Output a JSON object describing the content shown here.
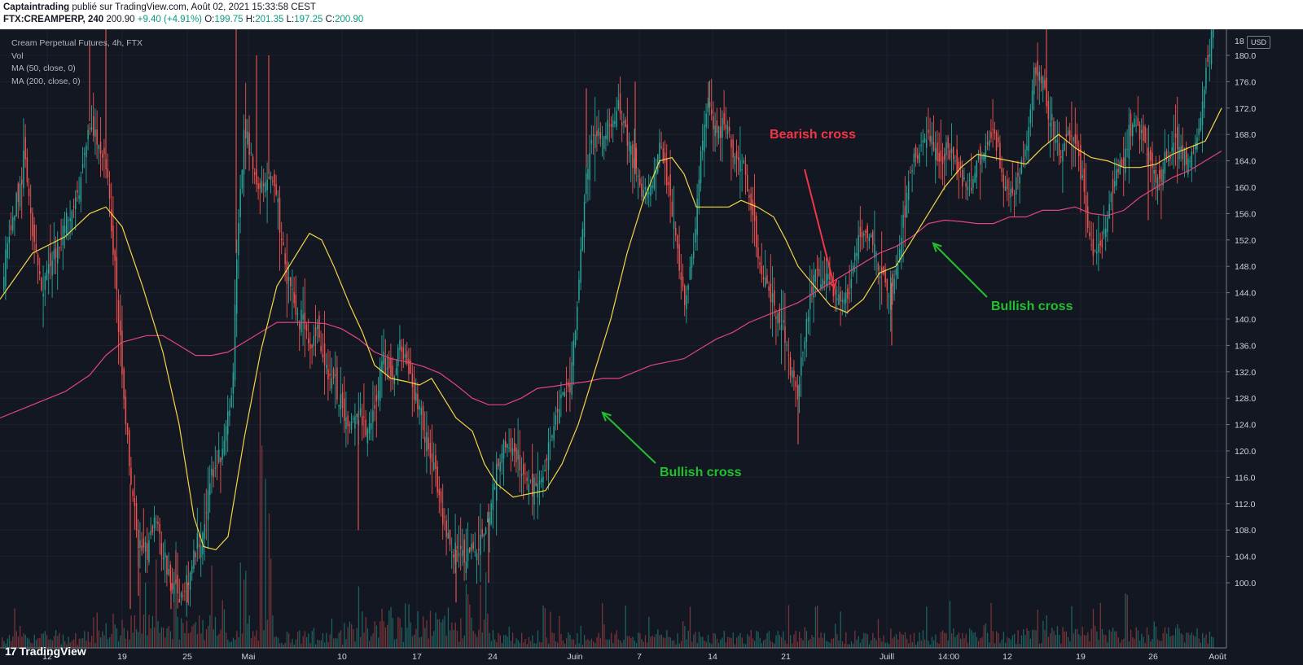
{
  "header": {
    "author": "Captaintrading",
    "published_text": " publié sur TradingView.com, Août 02, 2021 15:33:58 CEST",
    "symbol": "FTX:CREAMPERP, 240",
    "last": "200.90",
    "change": "+9.40 (+4.91%)",
    "o_label": "O:",
    "o_val": "199.75",
    "h_label": "H:",
    "h_val": "201.35",
    "l_label": "L:",
    "l_val": "197.25",
    "c_label": "C:",
    "c_val": "200.90"
  },
  "legend": {
    "title": "Cream Perpetual Futures, 4h, FTX",
    "vol": "Vol",
    "ma50": "MA (50, close, 0)",
    "ma200": "MA (200, close, 0)"
  },
  "currency": "USD",
  "annotations": {
    "bearish": "Bearish cross",
    "bullish1": "Bullish cross",
    "bullish2": "Bullish cross"
  },
  "logo": "TradingView",
  "colors": {
    "background": "#131722",
    "up": "#26a69a",
    "down": "#ef5350",
    "ma50": "#f5d547",
    "ma200": "#e0457b",
    "bearish": "#f23645",
    "bullish": "#22c02e"
  },
  "chart_data": {
    "type": "candlestick",
    "title": "Cream Perpetual Futures, 4h, FTX",
    "ylabel": "USD",
    "ylim": [
      96,
      184
    ],
    "y_ticks": [
      100,
      104,
      108,
      112,
      116,
      120,
      124,
      128,
      132,
      136,
      140,
      144,
      148,
      152,
      156,
      160,
      164,
      168,
      172,
      176,
      180
    ],
    "x_ticks": [
      "12",
      "19",
      "25",
      "Mai",
      "10",
      "17",
      "24",
      "Juin",
      "7",
      "14",
      "21",
      "Juill",
      "14:00",
      "12",
      "19",
      "26",
      "Août"
    ],
    "top_tick_label": "18",
    "ma50": [
      [
        0,
        143
      ],
      [
        40,
        150
      ],
      [
        80,
        152.5
      ],
      [
        110,
        156
      ],
      [
        130,
        157
      ],
      [
        150,
        154
      ],
      [
        175,
        145
      ],
      [
        200,
        135
      ],
      [
        220,
        124
      ],
      [
        238,
        110
      ],
      [
        250,
        105.5
      ],
      [
        265,
        105
      ],
      [
        280,
        107
      ],
      [
        300,
        122
      ],
      [
        320,
        135
      ],
      [
        340,
        145
      ],
      [
        360,
        149
      ],
      [
        380,
        153
      ],
      [
        395,
        152
      ],
      [
        410,
        148
      ],
      [
        430,
        142
      ],
      [
        445,
        138
      ],
      [
        460,
        133
      ],
      [
        480,
        131
      ],
      [
        500,
        130.5
      ],
      [
        515,
        130
      ],
      [
        530,
        131
      ],
      [
        545,
        128
      ],
      [
        560,
        125
      ],
      [
        580,
        123
      ],
      [
        595,
        118
      ],
      [
        610,
        115
      ],
      [
        630,
        113
      ],
      [
        650,
        113.5
      ],
      [
        670,
        114
      ],
      [
        690,
        118
      ],
      [
        710,
        124
      ],
      [
        730,
        132
      ],
      [
        750,
        140
      ],
      [
        770,
        150
      ],
      [
        790,
        158
      ],
      [
        810,
        164
      ],
      [
        825,
        164.5
      ],
      [
        840,
        162
      ],
      [
        855,
        157
      ],
      [
        875,
        157
      ],
      [
        895,
        157
      ],
      [
        910,
        158
      ],
      [
        930,
        157
      ],
      [
        950,
        155.5
      ],
      [
        965,
        152
      ],
      [
        980,
        148
      ],
      [
        1000,
        145
      ],
      [
        1020,
        142
      ],
      [
        1040,
        141
      ],
      [
        1060,
        143
      ],
      [
        1080,
        147
      ],
      [
        1100,
        148
      ],
      [
        1120,
        152
      ],
      [
        1140,
        156
      ],
      [
        1160,
        160
      ],
      [
        1180,
        163
      ],
      [
        1200,
        165
      ],
      [
        1220,
        164.5
      ],
      [
        1240,
        164
      ],
      [
        1260,
        163.5
      ],
      [
        1280,
        166
      ],
      [
        1300,
        168
      ],
      [
        1320,
        166
      ],
      [
        1340,
        164.5
      ],
      [
        1360,
        164
      ],
      [
        1380,
        163
      ],
      [
        1400,
        163
      ],
      [
        1420,
        163.5
      ],
      [
        1440,
        165
      ],
      [
        1460,
        166
      ],
      [
        1480,
        167
      ],
      [
        1500,
        172
      ]
    ],
    "ma200": [
      [
        0,
        125
      ],
      [
        40,
        127
      ],
      [
        80,
        129
      ],
      [
        110,
        131.5
      ],
      [
        130,
        134.5
      ],
      [
        150,
        136.5
      ],
      [
        180,
        137.5
      ],
      [
        200,
        137.5
      ],
      [
        220,
        136
      ],
      [
        240,
        134.5
      ],
      [
        260,
        134.5
      ],
      [
        280,
        135
      ],
      [
        300,
        136.5
      ],
      [
        320,
        138
      ],
      [
        340,
        139.5
      ],
      [
        360,
        139.5
      ],
      [
        380,
        139.5
      ],
      [
        400,
        139.3
      ],
      [
        420,
        138.5
      ],
      [
        440,
        137
      ],
      [
        460,
        135
      ],
      [
        480,
        134
      ],
      [
        500,
        133.5
      ],
      [
        520,
        132.8
      ],
      [
        540,
        131.8
      ],
      [
        560,
        130
      ],
      [
        580,
        128
      ],
      [
        600,
        127
      ],
      [
        620,
        127
      ],
      [
        640,
        128
      ],
      [
        660,
        129.5
      ],
      [
        680,
        129.8
      ],
      [
        700,
        130.2
      ],
      [
        720,
        130.5
      ],
      [
        740,
        131
      ],
      [
        760,
        131
      ],
      [
        780,
        132
      ],
      [
        800,
        133
      ],
      [
        820,
        133.5
      ],
      [
        840,
        134
      ],
      [
        860,
        135.5
      ],
      [
        880,
        137
      ],
      [
        900,
        138
      ],
      [
        920,
        139.5
      ],
      [
        940,
        140.5
      ],
      [
        960,
        141.5
      ],
      [
        980,
        142.5
      ],
      [
        1000,
        144
      ],
      [
        1020,
        145.5
      ],
      [
        1040,
        147
      ],
      [
        1060,
        148.5
      ],
      [
        1080,
        150
      ],
      [
        1100,
        151
      ],
      [
        1120,
        152.5
      ],
      [
        1140,
        154.5
      ],
      [
        1160,
        155
      ],
      [
        1180,
        154.8
      ],
      [
        1200,
        154.5
      ],
      [
        1220,
        154.5
      ],
      [
        1240,
        155.5
      ],
      [
        1260,
        155.5
      ],
      [
        1280,
        156.5
      ],
      [
        1300,
        156.5
      ],
      [
        1320,
        157
      ],
      [
        1340,
        156
      ],
      [
        1360,
        155.7
      ],
      [
        1380,
        156.5
      ],
      [
        1400,
        158.5
      ],
      [
        1420,
        160
      ],
      [
        1440,
        161.5
      ],
      [
        1460,
        162.5
      ],
      [
        1480,
        164
      ],
      [
        1500,
        165.5
      ]
    ],
    "price_path": [
      [
        0,
        144
      ],
      [
        15,
        155
      ],
      [
        30,
        165
      ],
      [
        40,
        152
      ],
      [
        50,
        145
      ],
      [
        60,
        148
      ],
      [
        70,
        150
      ],
      [
        80,
        155
      ],
      [
        90,
        158
      ],
      [
        100,
        162
      ],
      [
        110,
        170
      ],
      [
        120,
        166
      ],
      [
        130,
        163
      ],
      [
        140,
        148
      ],
      [
        150,
        130
      ],
      [
        160,
        115
      ],
      [
        170,
        105
      ],
      [
        180,
        105
      ],
      [
        190,
        110
      ],
      [
        200,
        104
      ],
      [
        210,
        100
      ],
      [
        220,
        98
      ],
      [
        230,
        100
      ],
      [
        245,
        107
      ],
      [
        255,
        113
      ],
      [
        265,
        118
      ],
      [
        275,
        122
      ],
      [
        285,
        130
      ],
      [
        290,
        150
      ],
      [
        300,
        170
      ],
      [
        310,
        162
      ],
      [
        320,
        160
      ],
      [
        330,
        162
      ],
      [
        340,
        158
      ],
      [
        350,
        148
      ],
      [
        360,
        142
      ],
      [
        370,
        140
      ],
      [
        380,
        136
      ],
      [
        390,
        138
      ],
      [
        400,
        133
      ],
      [
        410,
        130
      ],
      [
        420,
        126
      ],
      [
        430,
        124
      ],
      [
        440,
        126
      ],
      [
        450,
        122
      ],
      [
        460,
        128
      ],
      [
        470,
        134
      ],
      [
        480,
        130
      ],
      [
        490,
        136
      ],
      [
        500,
        133
      ],
      [
        510,
        128
      ],
      [
        520,
        123
      ],
      [
        530,
        118
      ],
      [
        540,
        112
      ],
      [
        550,
        106
      ],
      [
        560,
        105
      ],
      [
        570,
        104
      ],
      [
        580,
        105
      ],
      [
        590,
        106
      ],
      [
        600,
        112
      ],
      [
        610,
        117
      ],
      [
        620,
        121
      ],
      [
        630,
        120
      ],
      [
        640,
        117
      ],
      [
        650,
        115
      ],
      [
        660,
        114
      ],
      [
        670,
        118
      ],
      [
        680,
        124
      ],
      [
        690,
        128
      ],
      [
        700,
        130
      ],
      [
        710,
        146
      ],
      [
        720,
        163
      ],
      [
        730,
        170
      ],
      [
        740,
        166
      ],
      [
        750,
        170
      ],
      [
        760,
        172
      ],
      [
        770,
        168
      ],
      [
        780,
        162
      ],
      [
        790,
        158
      ],
      [
        800,
        160
      ],
      [
        810,
        166
      ],
      [
        820,
        160
      ],
      [
        830,
        152
      ],
      [
        840,
        142
      ],
      [
        850,
        150
      ],
      [
        860,
        166
      ],
      [
        870,
        172
      ],
      [
        880,
        168
      ],
      [
        890,
        170
      ],
      [
        900,
        166
      ],
      [
        910,
        164
      ],
      [
        920,
        158
      ],
      [
        930,
        150
      ],
      [
        940,
        145
      ],
      [
        950,
        142
      ],
      [
        960,
        140
      ],
      [
        970,
        132
      ],
      [
        980,
        130
      ],
      [
        990,
        140
      ],
      [
        1000,
        146
      ],
      [
        1010,
        147
      ],
      [
        1020,
        145
      ],
      [
        1030,
        143
      ],
      [
        1040,
        144
      ],
      [
        1050,
        150
      ],
      [
        1060,
        154
      ],
      [
        1070,
        152
      ],
      [
        1080,
        148
      ],
      [
        1090,
        143
      ],
      [
        1100,
        148
      ],
      [
        1110,
        156
      ],
      [
        1120,
        164
      ],
      [
        1130,
        166
      ],
      [
        1140,
        168
      ],
      [
        1150,
        165
      ],
      [
        1160,
        166
      ],
      [
        1170,
        164
      ],
      [
        1180,
        162
      ],
      [
        1190,
        160
      ],
      [
        1200,
        164
      ],
      [
        1210,
        166
      ],
      [
        1220,
        168
      ],
      [
        1230,
        162
      ],
      [
        1240,
        158
      ],
      [
        1250,
        162
      ],
      [
        1260,
        166
      ],
      [
        1270,
        178
      ],
      [
        1280,
        176
      ],
      [
        1290,
        170
      ],
      [
        1300,
        166
      ],
      [
        1310,
        168
      ],
      [
        1320,
        166
      ],
      [
        1330,
        160
      ],
      [
        1340,
        150
      ],
      [
        1350,
        150
      ],
      [
        1360,
        156
      ],
      [
        1370,
        162
      ],
      [
        1380,
        165
      ],
      [
        1390,
        170
      ],
      [
        1400,
        168
      ],
      [
        1410,
        166
      ],
      [
        1420,
        160
      ],
      [
        1430,
        164
      ],
      [
        1440,
        166
      ],
      [
        1450,
        166
      ],
      [
        1460,
        163
      ],
      [
        1470,
        168
      ],
      [
        1480,
        178
      ],
      [
        1490,
        184
      ]
    ],
    "price_spikes_high": [
      [
        110,
        182
      ],
      [
        130,
        184
      ],
      [
        290,
        184
      ],
      [
        315,
        180
      ],
      [
        330,
        180
      ],
      [
        720,
        175
      ],
      [
        780,
        176
      ],
      [
        870,
        176
      ],
      [
        1285,
        184
      ]
    ],
    "price_spikes_low": [
      [
        160,
        96
      ],
      [
        170,
        98
      ],
      [
        210,
        96
      ],
      [
        230,
        97
      ],
      [
        440,
        108
      ],
      [
        560,
        97
      ],
      [
        600,
        100
      ],
      [
        980,
        121
      ],
      [
        1095,
        136
      ],
      [
        1410,
        155
      ]
    ],
    "volume_note": "Volume histogram along the bottom; spikes to ~55% of the pane in late April and mid-May.",
    "annotations": [
      {
        "text": "Bearish cross",
        "x": "~Juin 24",
        "price": 146
      },
      {
        "text": "Bullish cross",
        "x": "~Juin 3",
        "price": 126
      },
      {
        "text": "Bullish cross",
        "x": "~Juill 13",
        "price": 153
      }
    ]
  }
}
